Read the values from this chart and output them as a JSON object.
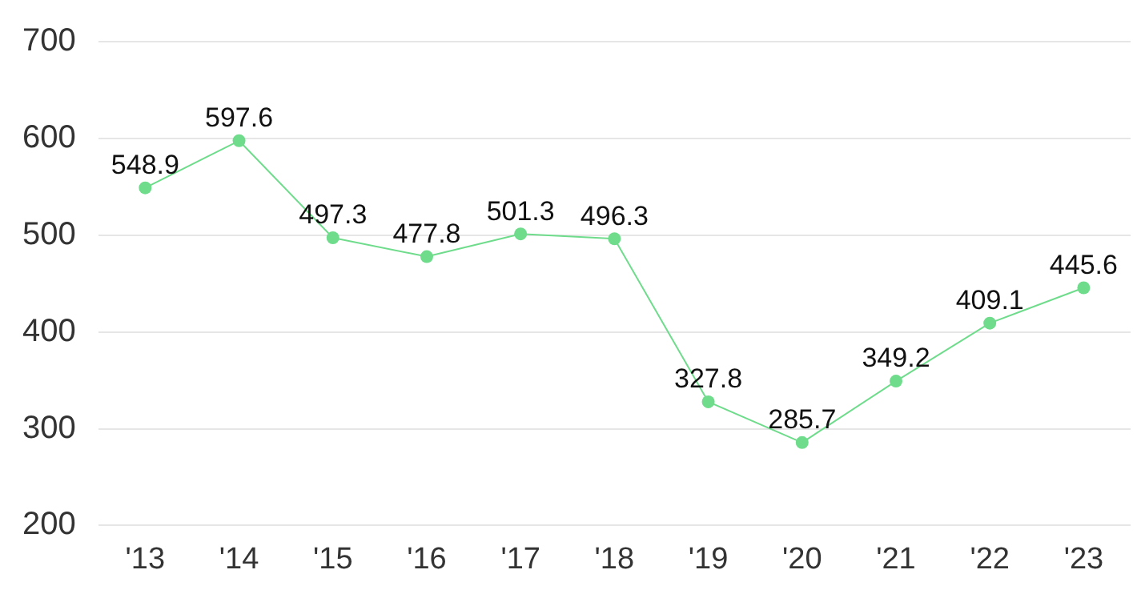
{
  "chart_data": {
    "type": "line",
    "categories": [
      "'13",
      "'14",
      "'15",
      "'16",
      "'17",
      "'18",
      "'19",
      "'20",
      "'21",
      "'22",
      "'23"
    ],
    "values": [
      548.9,
      597.6,
      497.3,
      477.8,
      501.3,
      496.3,
      327.8,
      285.7,
      349.2,
      409.1,
      445.6
    ],
    "color": "#6fdc8c",
    "ylim": [
      200,
      700
    ],
    "yticks": [
      200,
      300,
      400,
      500,
      600,
      700
    ],
    "grid": "y",
    "marker": "circle",
    "line_style": "solid",
    "data_labels": true,
    "legend": false
  }
}
